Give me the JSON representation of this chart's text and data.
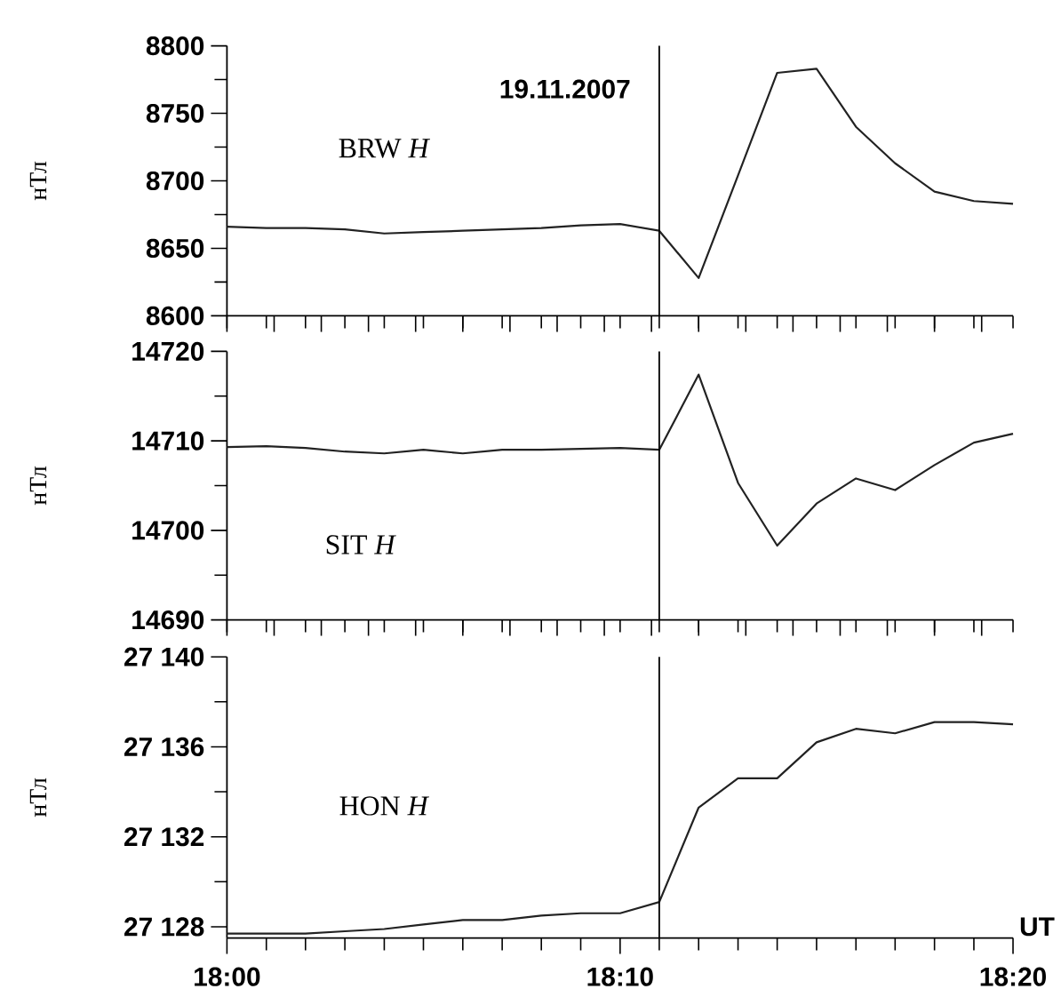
{
  "chart_data": [
    {
      "type": "line",
      "title": "19.11.2007",
      "ylabel": "нТл",
      "annotations": [
        "BRW *H*"
      ],
      "tick_labels": "y",
      "x": [
        18.0,
        18.0167,
        18.0333,
        18.05,
        18.0667,
        18.0833,
        18.1,
        18.1167,
        18.1333,
        18.15,
        18.1667,
        18.1833,
        18.2,
        18.2167,
        18.2333,
        18.25,
        18.2667,
        18.2833,
        18.3,
        18.3167,
        18.3333
      ],
      "series": [
        {
          "color": "#222222",
          "values": [
            8666,
            8665,
            8665,
            8664,
            8661,
            8662,
            8663,
            8664,
            8665,
            8667,
            8668,
            8663,
            8628,
            8704,
            8780,
            8783,
            8740,
            8713,
            8692,
            8685,
            8683
          ]
        }
      ],
      "xlim": [
        18.0,
        18.3333
      ],
      "xticks": [
        {
          "value": 18.0,
          "label": null
        },
        {
          "value": 18.0167,
          "label": null
        },
        {
          "value": 18.0333,
          "label": null
        },
        {
          "value": 18.05,
          "label": null
        },
        {
          "value": 18.0667,
          "label": null
        },
        {
          "value": 18.0833,
          "label": null
        },
        {
          "value": 18.1,
          "label": null
        },
        {
          "value": 18.1167,
          "label": null
        },
        {
          "value": 18.1333,
          "label": null
        },
        {
          "value": 18.15,
          "label": null
        },
        {
          "value": 18.1667,
          "label": null
        },
        {
          "value": 18.1833,
          "label": null
        },
        {
          "value": 18.2,
          "label": null
        },
        {
          "value": 18.2167,
          "label": null
        },
        {
          "value": 18.2333,
          "label": null
        },
        {
          "value": 18.25,
          "label": null
        },
        {
          "value": 18.2667,
          "label": null
        },
        {
          "value": 18.2833,
          "label": null
        },
        {
          "value": 18.3,
          "label": null
        },
        {
          "value": 18.3167,
          "label": null
        },
        {
          "value": 18.3333,
          "label": null
        }
      ],
      "ylim": [
        8600,
        8800
      ],
      "yticks": [
        8600,
        {
          "value": 8625,
          "label": null
        },
        8650,
        {
          "value": 8675,
          "label": null
        },
        8700,
        {
          "value": 8725,
          "label": null
        },
        8750,
        {
          "value": 8775,
          "label": null
        },
        8800
      ],
      "ref_lines": [
        {
          "axis": "x",
          "value": 18.1833
        }
      ]
    },
    {
      "type": "line",
      "ylabel": "нТл",
      "annotations": [
        "SIT *H*"
      ],
      "tick_labels": "y",
      "x": [
        18.0,
        18.0167,
        18.0333,
        18.05,
        18.0667,
        18.0833,
        18.1,
        18.1167,
        18.1333,
        18.15,
        18.1667,
        18.1833,
        18.2,
        18.2167,
        18.2333,
        18.25,
        18.2667,
        18.2833,
        18.3,
        18.3167,
        18.3333
      ],
      "series": [
        {
          "color": "#222222",
          "values": [
            14709.3,
            14709.4,
            14709.2,
            14708.8,
            14708.6,
            14709.0,
            14708.6,
            14709.0,
            14709.0,
            14709.1,
            14709.2,
            14709.0,
            14717.4,
            14705.3,
            14698.3,
            14703.0,
            14705.8,
            14704.5,
            14707.3,
            14709.8,
            14710.8
          ]
        }
      ],
      "xlim": [
        18.0,
        18.3333
      ],
      "xticks": [
        {
          "value": 18.0,
          "label": null
        },
        {
          "value": 18.0167,
          "label": null
        },
        {
          "value": 18.0333,
          "label": null
        },
        {
          "value": 18.05,
          "label": null
        },
        {
          "value": 18.0667,
          "label": null
        },
        {
          "value": 18.0833,
          "label": null
        },
        {
          "value": 18.1,
          "label": null
        },
        {
          "value": 18.1167,
          "label": null
        },
        {
          "value": 18.1333,
          "label": null
        },
        {
          "value": 18.15,
          "label": null
        },
        {
          "value": 18.1667,
          "label": null
        },
        {
          "value": 18.1833,
          "label": null
        },
        {
          "value": 18.2,
          "label": null
        },
        {
          "value": 18.2167,
          "label": null
        },
        {
          "value": 18.2333,
          "label": null
        },
        {
          "value": 18.25,
          "label": null
        },
        {
          "value": 18.2667,
          "label": null
        },
        {
          "value": 18.2833,
          "label": null
        },
        {
          "value": 18.3,
          "label": null
        },
        {
          "value": 18.3167,
          "label": null
        },
        {
          "value": 18.3333,
          "label": null
        }
      ],
      "ylim": [
        14690,
        14720
      ],
      "yticks": [
        14690,
        {
          "value": 14695,
          "label": null
        },
        14700,
        {
          "value": 14705,
          "label": null
        },
        14710,
        {
          "value": 14715,
          "label": null
        },
        14720
      ],
      "ref_lines": [
        {
          "axis": "x",
          "value": 18.1833
        }
      ]
    },
    {
      "type": "line",
      "ylabel": "нТл",
      "xlabel": "UT",
      "annotations": [
        "HON *H*"
      ],
      "x": [
        18.0,
        18.0167,
        18.0333,
        18.05,
        18.0667,
        18.0833,
        18.1,
        18.1167,
        18.1333,
        18.15,
        18.1667,
        18.1833,
        18.2,
        18.2167,
        18.2333,
        18.25,
        18.2667,
        18.2833,
        18.3,
        18.3167,
        18.3333
      ],
      "series": [
        {
          "color": "#222222",
          "values": [
            27127.7,
            27127.7,
            27127.7,
            27127.8,
            27127.9,
            27128.1,
            27128.3,
            27128.3,
            27128.5,
            27128.6,
            27128.6,
            27129.1,
            27133.3,
            27134.6,
            27134.6,
            27136.2,
            27136.8,
            27136.6,
            27137.1,
            27137.1,
            27137.0
          ]
        }
      ],
      "xlim": [
        18.0,
        18.3333
      ],
      "xticks": [
        {
          "value": 18.0,
          "label": "18:00"
        },
        {
          "value": 18.0167,
          "label": null
        },
        {
          "value": 18.0333,
          "label": null
        },
        {
          "value": 18.05,
          "label": null
        },
        {
          "value": 18.0667,
          "label": null
        },
        {
          "value": 18.0833,
          "label": null
        },
        {
          "value": 18.1,
          "label": null
        },
        {
          "value": 18.1167,
          "label": null
        },
        {
          "value": 18.1333,
          "label": null
        },
        {
          "value": 18.15,
          "label": null
        },
        {
          "value": 18.1667,
          "label": "18:10"
        },
        {
          "value": 18.1833,
          "label": null
        },
        {
          "value": 18.2,
          "label": null
        },
        {
          "value": 18.2167,
          "label": null
        },
        {
          "value": 18.2333,
          "label": null
        },
        {
          "value": 18.25,
          "label": null
        },
        {
          "value": 18.2667,
          "label": null
        },
        {
          "value": 18.2833,
          "label": null
        },
        {
          "value": 18.3,
          "label": null
        },
        {
          "value": 18.3167,
          "label": null
        },
        {
          "value": 18.3333,
          "label": "18:20"
        }
      ],
      "ylim": [
        27127.5,
        27140
      ],
      "yticks": [
        {
          "value": 27128,
          "label": "27 128"
        },
        {
          "value": 27130,
          "label": null
        },
        {
          "value": 27132,
          "label": "27 132"
        },
        {
          "value": 27134,
          "label": null
        },
        {
          "value": 27136,
          "label": "27 136"
        },
        {
          "value": 27138,
          "label": null
        },
        {
          "value": 27140,
          "label": "27 140"
        }
      ],
      "ref_lines": [
        {
          "axis": "x",
          "value": 18.1833
        }
      ]
    }
  ]
}
